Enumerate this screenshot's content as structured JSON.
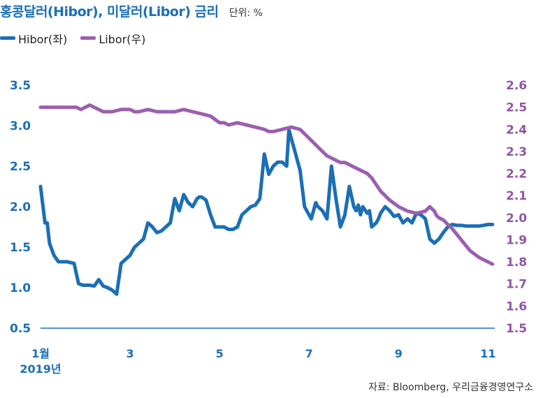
{
  "header": {
    "title": "홍콩달러(Hibor), 미달러(Libor) 금리",
    "unit": "단위: %"
  },
  "legend": [
    {
      "label": "Hibor(좌)",
      "color": "#1b6fb5"
    },
    {
      "label": "Libor(우)",
      "color": "#9b5fb0"
    }
  ],
  "source": "자료: Bloomberg, 우리금융경영연구소",
  "chart_data": {
    "type": "line",
    "x_axis": {
      "ticks": [
        {
          "month": 1,
          "label": "1월",
          "sublabel": "2019년"
        },
        {
          "month": 3,
          "label": "3"
        },
        {
          "month": 5,
          "label": "5"
        },
        {
          "month": 7,
          "label": "7"
        },
        {
          "month": 9,
          "label": "9"
        },
        {
          "month": 11,
          "label": "11"
        }
      ],
      "range": [
        1,
        11.15
      ]
    },
    "y_left": {
      "ticks": [
        "0.5",
        "1.0",
        "1.5",
        "2.0",
        "2.5",
        "3.0",
        "3.5"
      ],
      "range": [
        0.5,
        3.5
      ]
    },
    "y_right": {
      "ticks": [
        "1.5",
        "1.6",
        "1.7",
        "1.8",
        "1.9",
        "2.0",
        "2.1",
        "2.2",
        "2.3",
        "2.4",
        "2.5",
        "2.6"
      ],
      "range": [
        1.5,
        2.6
      ]
    },
    "series": [
      {
        "name": "Hibor(좌)",
        "axis": "left",
        "color": "#1b6fb5",
        "x": [
          1.0,
          1.1,
          1.15,
          1.2,
          1.3,
          1.4,
          1.5,
          1.6,
          1.75,
          1.85,
          1.95,
          2.0,
          2.1,
          2.2,
          2.3,
          2.4,
          2.5,
          2.6,
          2.7,
          2.8,
          2.9,
          3.0,
          3.1,
          3.2,
          3.3,
          3.4,
          3.5,
          3.6,
          3.7,
          3.8,
          3.9,
          4.0,
          4.1,
          4.2,
          4.3,
          4.4,
          4.5,
          4.55,
          4.6,
          4.7,
          4.8,
          4.9,
          5.0,
          5.1,
          5.2,
          5.3,
          5.4,
          5.5,
          5.6,
          5.7,
          5.8,
          5.9,
          6.0,
          6.1,
          6.2,
          6.3,
          6.4,
          6.5,
          6.55,
          6.6,
          6.7,
          6.8,
          6.9,
          7.0,
          7.05,
          7.1,
          7.15,
          7.2,
          7.3,
          7.35,
          7.4,
          7.5,
          7.6,
          7.7,
          7.8,
          7.9,
          8.0,
          8.05,
          8.1,
          8.15,
          8.2,
          8.3,
          8.35,
          8.4,
          8.5,
          8.55,
          8.6,
          8.7,
          8.8,
          8.9,
          9.0,
          9.1,
          9.2,
          9.3,
          9.4,
          9.5,
          9.6,
          9.7,
          9.8,
          9.9,
          10.0,
          10.1,
          10.2,
          10.3,
          10.4,
          10.5,
          10.6,
          10.7,
          10.8,
          10.9,
          11.0,
          11.1
        ],
        "values": [
          2.25,
          1.8,
          1.8,
          1.55,
          1.4,
          1.32,
          1.32,
          1.32,
          1.3,
          1.05,
          1.03,
          1.03,
          1.03,
          1.02,
          1.1,
          1.02,
          1.0,
          0.97,
          0.92,
          1.3,
          1.35,
          1.4,
          1.5,
          1.55,
          1.6,
          1.8,
          1.75,
          1.68,
          1.7,
          1.75,
          1.8,
          2.1,
          1.95,
          2.15,
          2.05,
          2.0,
          2.1,
          2.12,
          2.12,
          2.08,
          1.9,
          1.75,
          1.75,
          1.75,
          1.72,
          1.72,
          1.75,
          1.9,
          1.95,
          2.0,
          2.02,
          2.1,
          2.65,
          2.4,
          2.5,
          2.55,
          2.55,
          2.5,
          2.95,
          2.85,
          2.65,
          2.45,
          2.0,
          1.9,
          1.85,
          1.95,
          2.05,
          2.0,
          1.95,
          1.9,
          1.85,
          2.5,
          2.1,
          1.75,
          1.9,
          2.25,
          2.0,
          1.95,
          2.02,
          1.9,
          2.0,
          1.92,
          1.95,
          1.75,
          1.8,
          1.85,
          1.92,
          2.0,
          1.95,
          1.88,
          1.9,
          1.8,
          1.85,
          1.8,
          1.92,
          1.9,
          1.85,
          1.6,
          1.55,
          1.6,
          1.68,
          1.75,
          1.78,
          1.77,
          1.77,
          1.76,
          1.76,
          1.76,
          1.76,
          1.77,
          1.78,
          1.78
        ],
        "values_note_cutoff": 98
      },
      {
        "name": "Libor(우)",
        "axis": "right",
        "color": "#9b5fb0",
        "x": [
          1.0,
          1.2,
          1.4,
          1.6,
          1.8,
          1.9,
          2.0,
          2.1,
          2.2,
          2.3,
          2.4,
          2.6,
          2.8,
          3.0,
          3.1,
          3.2,
          3.4,
          3.6,
          3.8,
          4.0,
          4.2,
          4.4,
          4.6,
          4.8,
          5.0,
          5.1,
          5.2,
          5.4,
          5.6,
          5.8,
          6.0,
          6.1,
          6.2,
          6.4,
          6.6,
          6.8,
          6.9,
          7.0,
          7.1,
          7.2,
          7.3,
          7.4,
          7.5,
          7.6,
          7.7,
          7.8,
          7.9,
          8.0,
          8.1,
          8.2,
          8.3,
          8.4,
          8.5,
          8.6,
          8.8,
          9.0,
          9.2,
          9.4,
          9.6,
          9.7,
          9.8,
          9.85,
          9.9,
          10.0,
          10.2,
          10.4,
          10.6,
          10.8,
          11.0,
          11.1
        ],
        "values": [
          2.5,
          2.5,
          2.5,
          2.5,
          2.5,
          2.49,
          2.5,
          2.51,
          2.5,
          2.49,
          2.48,
          2.48,
          2.49,
          2.49,
          2.48,
          2.48,
          2.49,
          2.48,
          2.48,
          2.48,
          2.49,
          2.48,
          2.47,
          2.46,
          2.43,
          2.43,
          2.42,
          2.43,
          2.42,
          2.41,
          2.4,
          2.39,
          2.39,
          2.4,
          2.41,
          2.4,
          2.38,
          2.36,
          2.34,
          2.32,
          2.3,
          2.28,
          2.27,
          2.26,
          2.25,
          2.25,
          2.24,
          2.23,
          2.22,
          2.21,
          2.2,
          2.18,
          2.15,
          2.12,
          2.08,
          2.05,
          2.03,
          2.02,
          2.03,
          2.05,
          2.03,
          2.01,
          2.0,
          1.99,
          1.95,
          1.9,
          1.85,
          1.82,
          1.8,
          1.79
        ]
      }
    ]
  }
}
